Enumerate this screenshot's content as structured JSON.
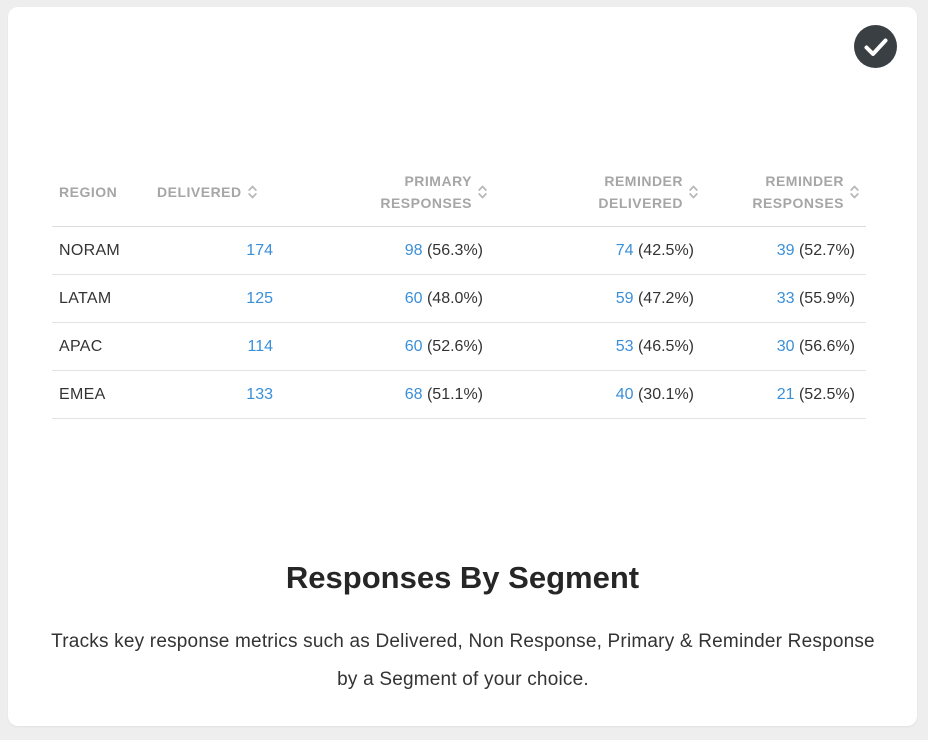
{
  "badge": {
    "icon": "checkmark-icon"
  },
  "table": {
    "columns": [
      {
        "line1": "REGION",
        "line2": ""
      },
      {
        "line1": "DELIVERED",
        "line2": ""
      },
      {
        "line1": "PRIMARY",
        "line2": "RESPONSES"
      },
      {
        "line1": "REMINDER",
        "line2": "DELIVERED"
      },
      {
        "line1": "REMINDER",
        "line2": "RESPONSES"
      }
    ],
    "rows": [
      {
        "region": "NORAM",
        "delivered": "174",
        "primary": "98",
        "primary_pct": "(56.3%)",
        "rem_delivered": "74",
        "rem_delivered_pct": "(42.5%)",
        "rem_responses": "39",
        "rem_responses_pct": "(52.7%)"
      },
      {
        "region": "LATAM",
        "delivered": "125",
        "primary": "60",
        "primary_pct": "(48.0%)",
        "rem_delivered": "59",
        "rem_delivered_pct": "(47.2%)",
        "rem_responses": "33",
        "rem_responses_pct": "(55.9%)"
      },
      {
        "region": "APAC",
        "delivered": "114",
        "primary": "60",
        "primary_pct": "(52.6%)",
        "rem_delivered": "53",
        "rem_delivered_pct": "(46.5%)",
        "rem_responses": "30",
        "rem_responses_pct": "(56.6%)"
      },
      {
        "region": "EMEA",
        "delivered": "133",
        "primary": "68",
        "primary_pct": "(51.1%)",
        "rem_delivered": "40",
        "rem_delivered_pct": "(30.1%)",
        "rem_responses": "21",
        "rem_responses_pct": "(52.5%)"
      }
    ]
  },
  "title": "Responses By Segment",
  "description": "Tracks key response metrics such as Delivered, Non Response, Primary & Reminder Response by a Segment of your choice.",
  "colors": {
    "link": "#3a8fd9",
    "header_text": "#a6a6a6",
    "badge_bg": "#3a3f44"
  }
}
